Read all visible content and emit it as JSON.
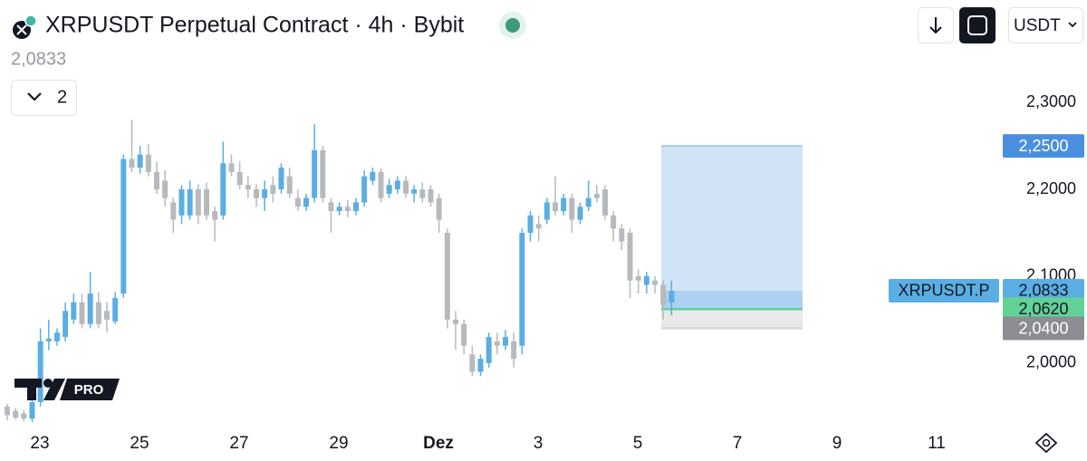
{
  "chart_data": {
    "type": "candlestick",
    "title": "XRPUSDT Perpetual Contract · 4h · Bybit",
    "last_price": {
      "value": 2.0833,
      "label": "2,0833"
    },
    "indicator_count": 2,
    "currency": "USDT",
    "symbol_label": "XRPUSDT.P",
    "watermark": "PRO",
    "up_color": "#5aaee3",
    "down_color": "#b7b9bf",
    "ylim": [
      1.93,
      2.32
    ],
    "yticks": [
      {
        "value": 2.0,
        "label": "2,0000"
      },
      {
        "value": 2.1,
        "label": "2,1000"
      },
      {
        "value": 2.2,
        "label": "2,2000"
      },
      {
        "value": 2.3,
        "label": "2,3000"
      }
    ],
    "xticks": [
      "23",
      "25",
      "27",
      "29",
      "Dez",
      "3",
      "5",
      "7",
      "9",
      "11"
    ],
    "position": {
      "target": {
        "value": 2.25,
        "label": "2,2500"
      },
      "entry": {
        "value": 2.062,
        "label": "2,0620"
      },
      "stop": {
        "value": 2.04,
        "label": "2,0400"
      }
    },
    "candles": [
      [
        1.95,
        1.953,
        1.934,
        1.94
      ],
      [
        1.945,
        1.948,
        1.935,
        1.937
      ],
      [
        1.942,
        1.946,
        1.933,
        1.936
      ],
      [
        1.936,
        1.958,
        1.932,
        1.955
      ],
      [
        1.955,
        2.04,
        1.95,
        2.025
      ],
      [
        2.025,
        2.05,
        2.015,
        2.028
      ],
      [
        2.025,
        2.04,
        2.02,
        2.035
      ],
      [
        2.03,
        2.07,
        2.025,
        2.06
      ],
      [
        2.05,
        2.08,
        2.045,
        2.07
      ],
      [
        2.07,
        2.08,
        2.04,
        2.045
      ],
      [
        2.045,
        2.105,
        2.04,
        2.08
      ],
      [
        2.07,
        2.082,
        2.04,
        2.045
      ],
      [
        2.06,
        2.07,
        2.035,
        2.05
      ],
      [
        2.048,
        2.082,
        2.045,
        2.075
      ],
      [
        2.08,
        2.24,
        2.075,
        2.235
      ],
      [
        2.235,
        2.28,
        2.22,
        2.225
      ],
      [
        2.225,
        2.25,
        2.218,
        2.24
      ],
      [
        2.24,
        2.252,
        2.215,
        2.22
      ],
      [
        2.22,
        2.232,
        2.195,
        2.2
      ],
      [
        2.21,
        2.222,
        2.18,
        2.19
      ],
      [
        2.185,
        2.19,
        2.15,
        2.165
      ],
      [
        2.17,
        2.205,
        2.16,
        2.2
      ],
      [
        2.17,
        2.21,
        2.165,
        2.2
      ],
      [
        2.2,
        2.206,
        2.16,
        2.17
      ],
      [
        2.2,
        2.208,
        2.165,
        2.17
      ],
      [
        2.175,
        2.18,
        2.14,
        2.165
      ],
      [
        2.17,
        2.255,
        2.165,
        2.23
      ],
      [
        2.23,
        2.24,
        2.215,
        2.22
      ],
      [
        2.22,
        2.232,
        2.2,
        2.205
      ],
      [
        2.205,
        2.215,
        2.19,
        2.2
      ],
      [
        2.2,
        2.206,
        2.18,
        2.19
      ],
      [
        2.19,
        2.21,
        2.175,
        2.2
      ],
      [
        2.205,
        2.215,
        2.185,
        2.195
      ],
      [
        2.2,
        2.23,
        2.195,
        2.225
      ],
      [
        2.215,
        2.225,
        2.19,
        2.195
      ],
      [
        2.19,
        2.2,
        2.175,
        2.18
      ],
      [
        2.18,
        2.195,
        2.175,
        2.19
      ],
      [
        2.19,
        2.275,
        2.185,
        2.245
      ],
      [
        2.245,
        2.25,
        2.185,
        2.19
      ],
      [
        2.185,
        2.19,
        2.15,
        2.175
      ],
      [
        2.175,
        2.185,
        2.17,
        2.18
      ],
      [
        2.18,
        2.188,
        2.168,
        2.175
      ],
      [
        2.175,
        2.19,
        2.17,
        2.185
      ],
      [
        2.185,
        2.222,
        2.18,
        2.215
      ],
      [
        2.21,
        2.225,
        2.205,
        2.22
      ],
      [
        2.22,
        2.224,
        2.185,
        2.19
      ],
      [
        2.195,
        2.212,
        2.19,
        2.205
      ],
      [
        2.2,
        2.215,
        2.195,
        2.21
      ],
      [
        2.21,
        2.215,
        2.19,
        2.195
      ],
      [
        2.195,
        2.205,
        2.185,
        2.2
      ],
      [
        2.2,
        2.208,
        2.185,
        2.19
      ],
      [
        2.2,
        2.205,
        2.18,
        2.185
      ],
      [
        2.19,
        2.195,
        2.15,
        2.165
      ],
      [
        2.15,
        2.155,
        2.04,
        2.05
      ],
      [
        2.05,
        2.06,
        2.015,
        2.045
      ],
      [
        2.045,
        2.05,
        2.01,
        2.02
      ],
      [
        2.01,
        2.02,
        1.985,
        1.99
      ],
      [
        1.99,
        2.01,
        1.985,
        2.005
      ],
      [
        2.0,
        2.035,
        1.995,
        2.03
      ],
      [
        2.025,
        2.035,
        2.01,
        2.02
      ],
      [
        2.02,
        2.038,
        2.015,
        2.03
      ],
      [
        2.025,
        2.035,
        1.995,
        2.005
      ],
      [
        2.02,
        2.155,
        2.01,
        2.15
      ],
      [
        2.15,
        2.175,
        2.14,
        2.17
      ],
      [
        2.16,
        2.17,
        2.14,
        2.155
      ],
      [
        2.165,
        2.19,
        2.16,
        2.185
      ],
      [
        2.185,
        2.215,
        2.17,
        2.175
      ],
      [
        2.175,
        2.195,
        2.17,
        2.19
      ],
      [
        2.19,
        2.195,
        2.15,
        2.165
      ],
      [
        2.165,
        2.185,
        2.16,
        2.18
      ],
      [
        2.18,
        2.21,
        2.175,
        2.19
      ],
      [
        2.195,
        2.205,
        2.185,
        2.19
      ],
      [
        2.2,
        2.205,
        2.165,
        2.17
      ],
      [
        2.17,
        2.175,
        2.14,
        2.155
      ],
      [
        2.155,
        2.16,
        2.13,
        2.14
      ],
      [
        2.15,
        2.155,
        2.075,
        2.095
      ],
      [
        2.1,
        2.108,
        2.08,
        2.095
      ],
      [
        2.09,
        2.105,
        2.08,
        2.1
      ],
      [
        2.095,
        2.1,
        2.08,
        2.09
      ],
      [
        2.09,
        2.095,
        2.05,
        2.067
      ],
      [
        2.07,
        2.095,
        2.055,
        2.0833
      ]
    ]
  }
}
